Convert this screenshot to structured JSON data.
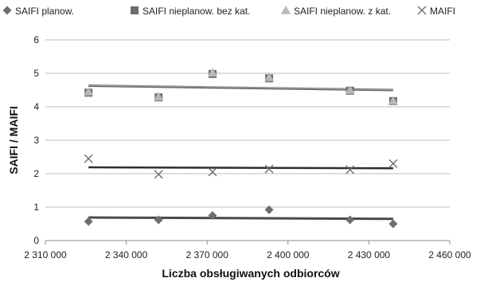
{
  "chart_data": {
    "type": "scatter",
    "title": "",
    "xlabel": "Liczba obsługiwanych odbiorców",
    "ylabel": "SAIFI / MAIFI",
    "xlim": [
      2310000,
      2460000
    ],
    "ylim": [
      0,
      6
    ],
    "x_ticks": [
      2310000,
      2340000,
      2370000,
      2400000,
      2430000,
      2460000
    ],
    "x_tick_labels": [
      "2 310 000",
      "2 340 000",
      "2 370 000",
      "2 400 000",
      "2 430 000",
      "2 460 000"
    ],
    "y_ticks": [
      0,
      1,
      2,
      3,
      4,
      5,
      6
    ],
    "y_tick_labels": [
      "0",
      "1",
      "2",
      "3",
      "4",
      "5",
      "6"
    ],
    "grid": "horizontal",
    "legend_position": "top",
    "x": [
      2326000,
      2352000,
      2372000,
      2393000,
      2423000,
      2439000
    ],
    "series": [
      {
        "name": "SAIFI planow.",
        "marker": "diamond",
        "color": "#6e6e6e",
        "values": [
          0.57,
          0.62,
          0.75,
          0.92,
          0.62,
          0.5
        ],
        "trendline": [
          0.69,
          0.65
        ]
      },
      {
        "name": "SAIFI nieplanow. bez kat.",
        "marker": "square",
        "color": "#6e6e6e",
        "values": [
          4.42,
          4.28,
          4.98,
          4.85,
          4.48,
          4.17
        ],
        "trendline": [
          4.63,
          4.5
        ]
      },
      {
        "name": "SAIFI nieplanow. z kat.",
        "marker": "triangle",
        "color": "#b8b8b8",
        "values": [
          4.45,
          4.3,
          5.02,
          4.88,
          4.5,
          4.18
        ],
        "trendline": [
          4.64,
          4.51
        ]
      },
      {
        "name": "MAIFI",
        "marker": "x",
        "color": "#6e6e6e",
        "values": [
          2.45,
          1.98,
          2.05,
          2.14,
          2.12,
          2.3
        ],
        "trendline": [
          2.19,
          2.16
        ]
      }
    ]
  }
}
